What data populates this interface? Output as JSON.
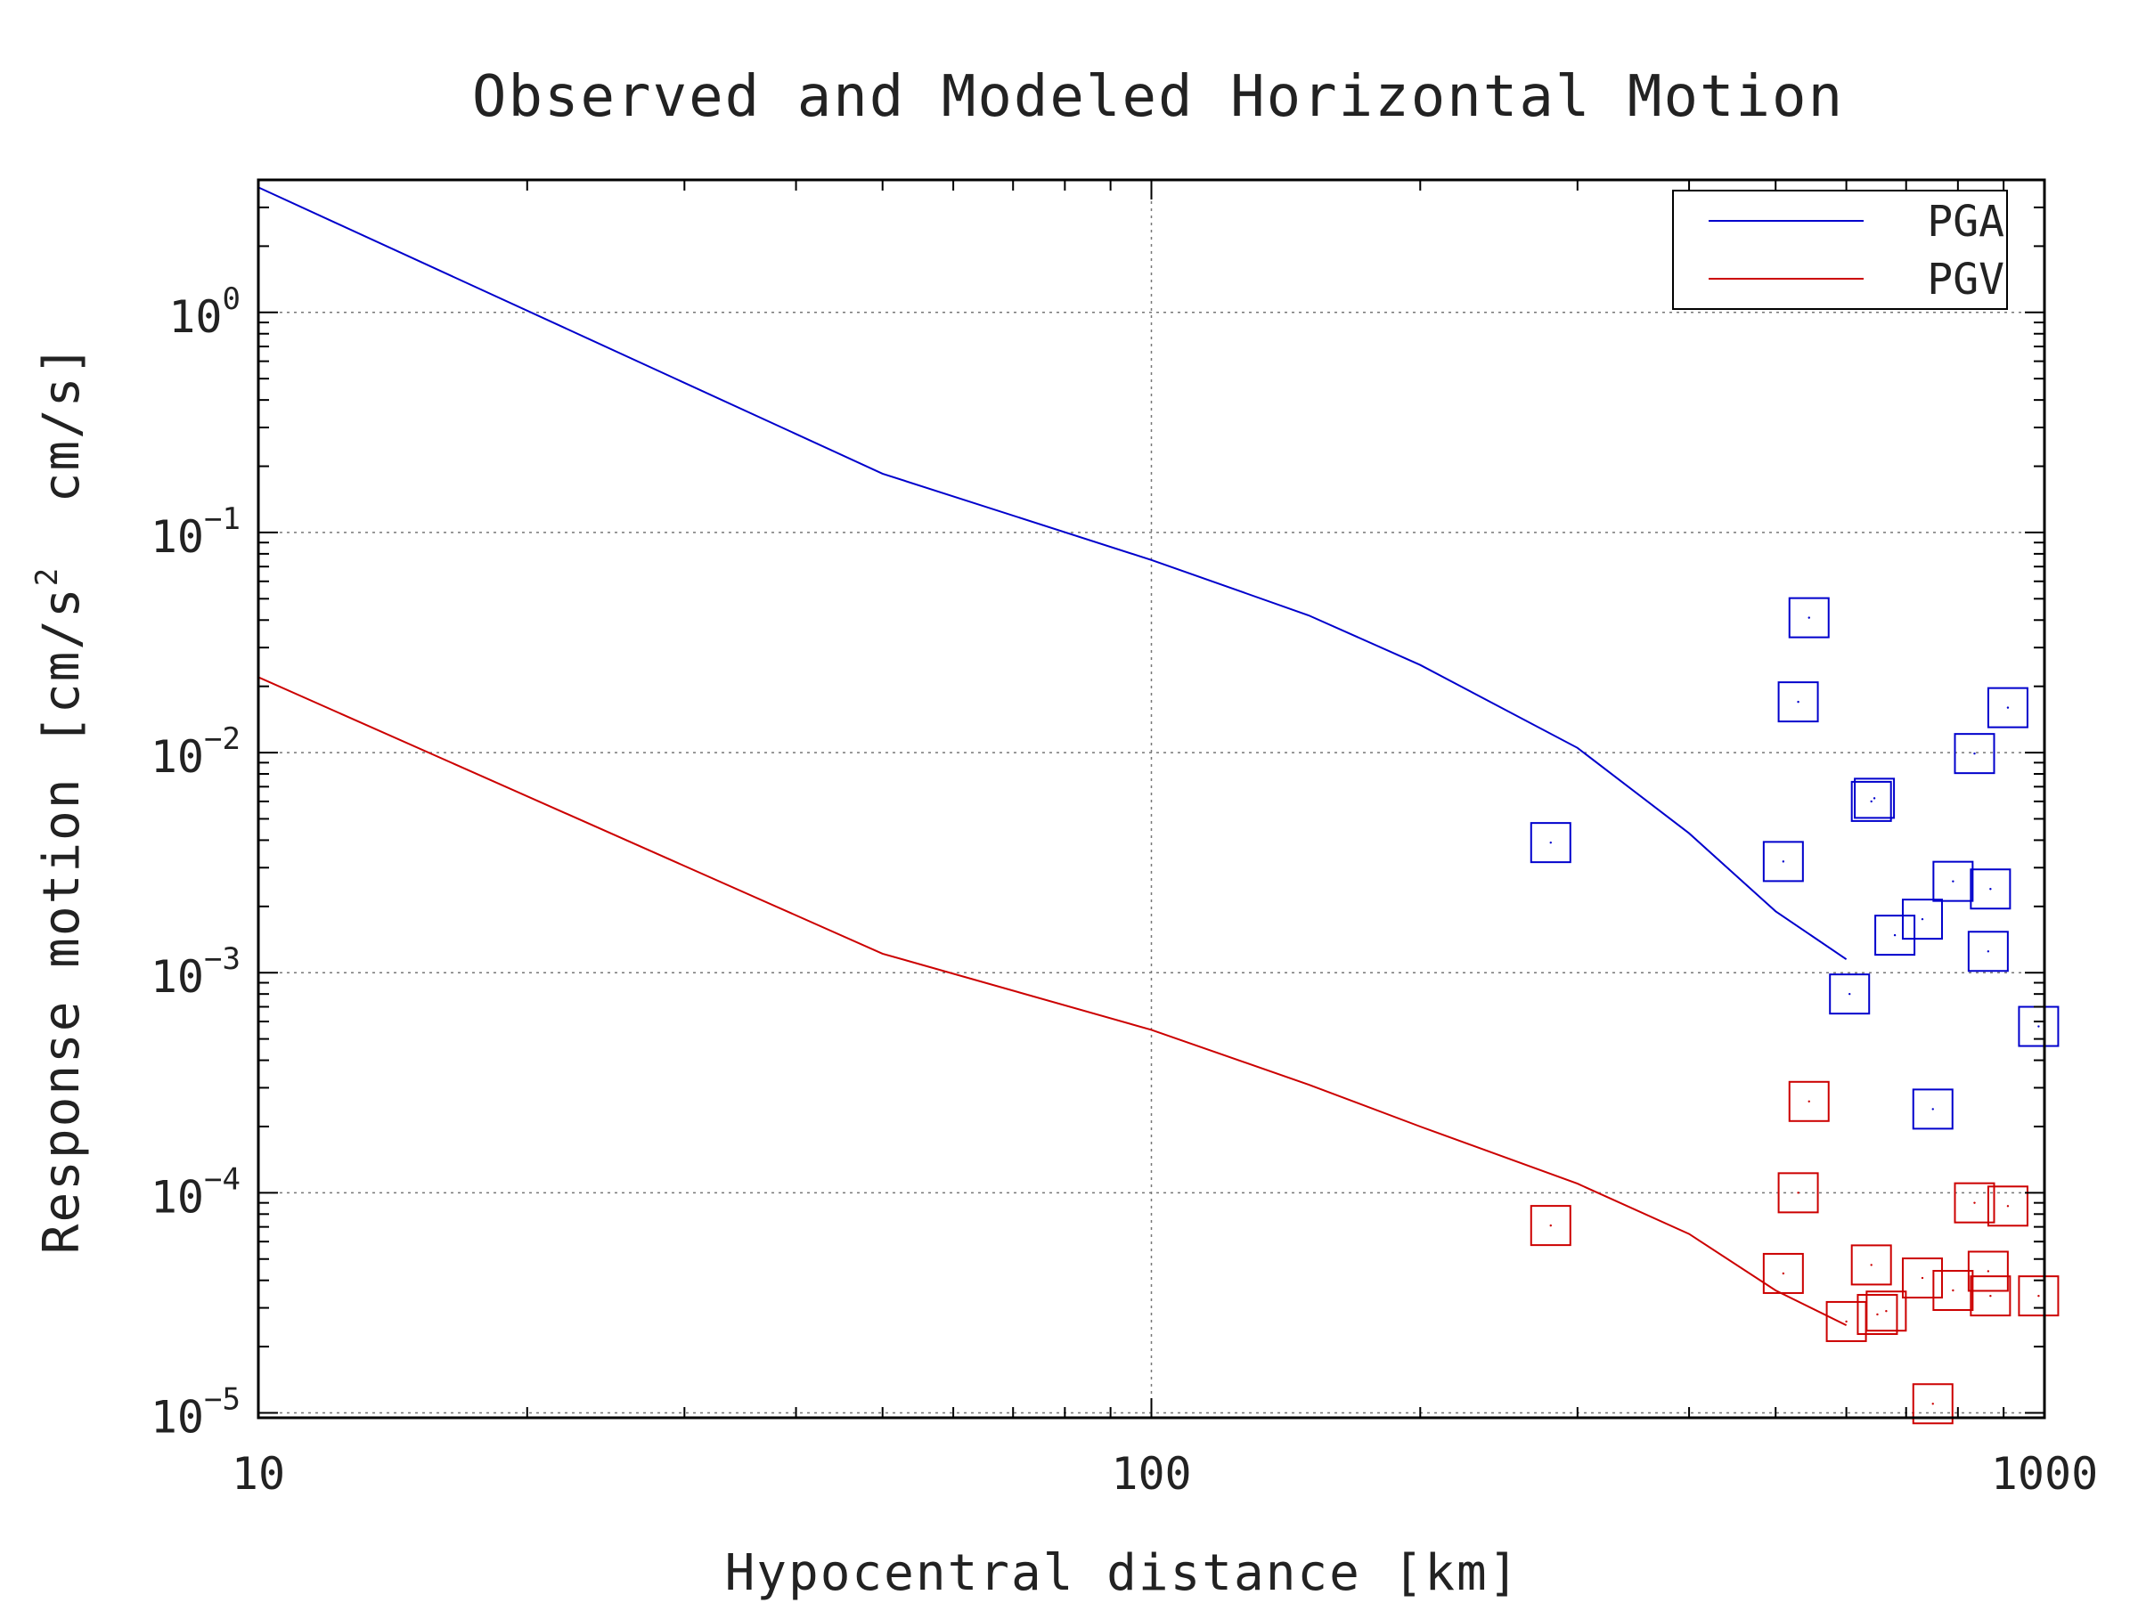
{
  "chart_data": {
    "type": "line",
    "title": "Observed and Modeled Horizontal Motion",
    "xlabel": "Hypocentral distance [km]",
    "ylabel_parts": [
      "Response motion [cm/s",
      "2",
      "  cm/s]"
    ],
    "xscale": "log",
    "yscale": "log",
    "xlim": [
      10,
      1000
    ],
    "ylim": [
      9.5e-06,
      4.0
    ],
    "grid": true,
    "legend_placement": "top-right",
    "x_ticks": [
      {
        "value": 10,
        "label": "10"
      },
      {
        "value": 100,
        "label": "100"
      },
      {
        "value": 1000,
        "label": "1000"
      }
    ],
    "y_ticks": [
      {
        "value": 1,
        "base": "10",
        "exp": "0"
      },
      {
        "value": 0.1,
        "base": "10",
        "exp": "−1"
      },
      {
        "value": 0.01,
        "base": "10",
        "exp": "−2"
      },
      {
        "value": 0.001,
        "base": "10",
        "exp": "−3"
      },
      {
        "value": 0.0001,
        "base": "10",
        "exp": "−4"
      },
      {
        "value": 1e-05,
        "base": "10",
        "exp": "−5"
      }
    ],
    "series": [
      {
        "name": "PGA",
        "color": "#0000cc",
        "line": [
          [
            10,
            3.7
          ],
          [
            50,
            0.185
          ],
          [
            100,
            0.075
          ],
          [
            150,
            0.042
          ],
          [
            200,
            0.025
          ],
          [
            300,
            0.0105
          ],
          [
            400,
            0.0043
          ],
          [
            500,
            0.0019
          ],
          [
            600,
            0.00115
          ]
        ],
        "observed": [
          [
            280,
            0.0039
          ],
          [
            510,
            0.0032
          ],
          [
            530,
            0.017
          ],
          [
            545,
            0.041
          ],
          [
            605,
            0.0008
          ],
          [
            640,
            0.006
          ],
          [
            645,
            0.0062
          ],
          [
            680,
            0.00148
          ],
          [
            730,
            0.00175
          ],
          [
            750,
            0.00024
          ],
          [
            790,
            0.0026
          ],
          [
            835,
            0.0099
          ],
          [
            865,
            0.00125
          ],
          [
            870,
            0.0024
          ],
          [
            910,
            0.016
          ],
          [
            985,
            0.00057
          ]
        ]
      },
      {
        "name": "PGV",
        "color": "#cc0000",
        "line": [
          [
            10,
            0.022
          ],
          [
            50,
            0.00122
          ],
          [
            100,
            0.00055
          ],
          [
            150,
            0.00031
          ],
          [
            200,
            0.0002
          ],
          [
            300,
            0.00011
          ],
          [
            400,
            6.5e-05
          ],
          [
            500,
            3.6e-05
          ],
          [
            600,
            2.5e-05
          ]
        ],
        "observed": [
          [
            280,
            7.1e-05
          ],
          [
            510,
            4.3e-05
          ],
          [
            530,
            0.0001
          ],
          [
            545,
            0.00026
          ],
          [
            600,
            2.6e-05
          ],
          [
            640,
            4.7e-05
          ],
          [
            650,
            2.8e-05
          ],
          [
            665,
            2.9e-05
          ],
          [
            730,
            4.1e-05
          ],
          [
            750,
            1.1e-05
          ],
          [
            790,
            3.6e-05
          ],
          [
            835,
            9e-05
          ],
          [
            865,
            4.4e-05
          ],
          [
            870,
            3.4e-05
          ],
          [
            910,
            8.7e-05
          ],
          [
            985,
            3.4e-05
          ]
        ]
      }
    ]
  }
}
